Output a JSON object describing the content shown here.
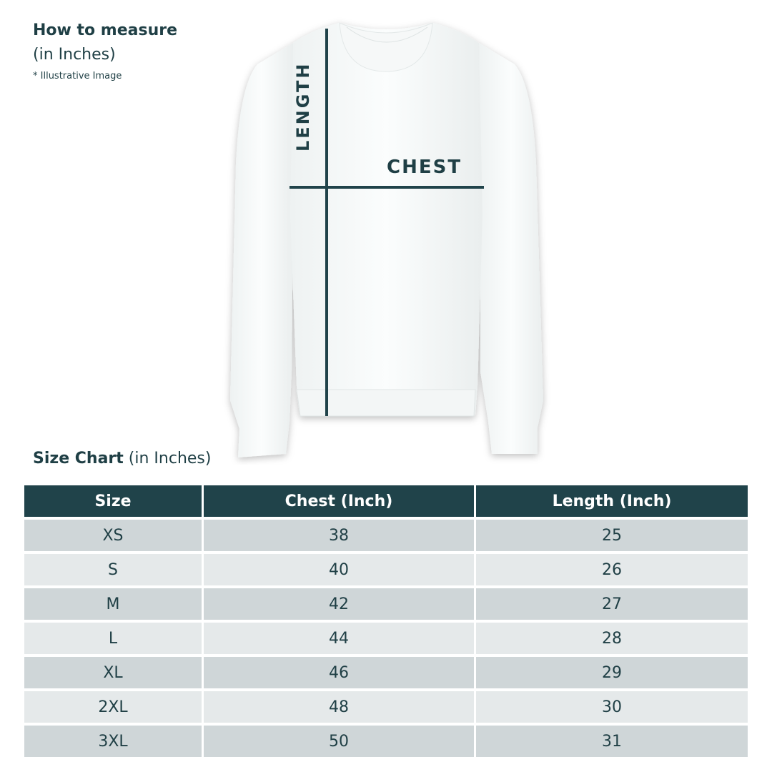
{
  "measure": {
    "title": "How to measure",
    "unit": "(in Inches)",
    "note": "* Illustrative Image",
    "length_label": "LENGTH",
    "chest_label": "CHEST"
  },
  "colors": {
    "accent": "#20434a",
    "row_dark": "#cfd6d8",
    "row_light": "#e5e9ea",
    "text": "#1f3f45"
  },
  "size_chart": {
    "title": "Size Chart",
    "unit": "(in Inches)",
    "headers": [
      "Size",
      "Chest (Inch)",
      "Length (Inch)"
    ],
    "rows": [
      [
        "XS",
        "38",
        "25"
      ],
      [
        "S",
        "40",
        "26"
      ],
      [
        "M",
        "42",
        "27"
      ],
      [
        "L",
        "44",
        "28"
      ],
      [
        "XL",
        "46",
        "29"
      ],
      [
        "2XL",
        "48",
        "30"
      ],
      [
        "3XL",
        "50",
        "31"
      ]
    ]
  }
}
